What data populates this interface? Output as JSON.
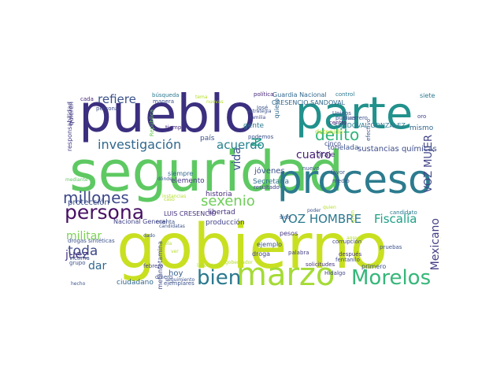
{
  "words": [
    {
      "text": "gobierno",
      "color": "#c8e020",
      "weight": 5
    },
    {
      "text": "seguridad",
      "color": "#5ec962",
      "weight": 5
    },
    {
      "text": "pueblo",
      "color": "#3b2f7f",
      "weight": 5
    },
    {
      "text": "parte",
      "color": "#21918c",
      "weight": 5
    },
    {
      "text": "proceso",
      "color": "#2c7b8e",
      "weight": 4
    },
    {
      "text": "marzo",
      "color": "#a5db36",
      "weight": 4
    },
    {
      "text": "persona",
      "color": "#471164",
      "weight": 3
    },
    {
      "text": "Morelos",
      "color": "#35b779",
      "weight": 3
    },
    {
      "text": "bien",
      "color": "#2a788e",
      "weight": 3
    },
    {
      "text": "millones",
      "color": "#3e4a89",
      "weight": 3
    },
    {
      "text": "delito",
      "color": "#2fb47c",
      "weight": 2
    },
    {
      "text": "sexenio",
      "color": "#6ece58",
      "weight": 2
    },
    {
      "text": "investigación",
      "color": "#31688e",
      "weight": 2
    },
    {
      "text": "acuerdo",
      "color": "#26828e",
      "weight": 2
    },
    {
      "text": "refiere",
      "color": "#3b528b",
      "weight": 2
    },
    {
      "text": "Fiscalía",
      "color": "#1fa187",
      "weight": 2
    },
    {
      "text": "VOZ HOMBRE",
      "color": "#2a788e",
      "weight": 2
    },
    {
      "text": "cuatro",
      "color": "#482173",
      "weight": 2
    },
    {
      "text": "toda",
      "color": "#3e4989",
      "weight": 2
    },
    {
      "text": "militar",
      "color": "#7ad151",
      "weight": 2
    },
    {
      "text": "juez",
      "color": "#453781",
      "weight": 2
    },
    {
      "text": "dar",
      "color": "#31688e",
      "weight": 2
    },
    {
      "text": "democracia",
      "color": "#31688e",
      "weight": 2
    },
    {
      "text": "vida",
      "color": "#3b528b",
      "weight": 2
    },
    {
      "text": "VOZ MUJER",
      "color": "#414487",
      "weight": 2
    },
    {
      "text": "Mexicano",
      "color": "#433e85",
      "weight": 2
    },
    {
      "text": "N",
      "color": "#1f9e89",
      "weight": 2
    },
    {
      "text": "Secretaría",
      "color": "#2d708e",
      "weight": 1
    },
    {
      "text": "jóvenes",
      "color": "#3b528b",
      "weight": 1
    },
    {
      "text": "sustancias químicas",
      "color": "#3e4c8a",
      "weight": 1
    },
    {
      "text": "historia",
      "color": "#472d7b",
      "weight": 1
    },
    {
      "text": "libertad",
      "color": "#46327e",
      "weight": 1
    },
    {
      "text": "producción",
      "color": "#414487",
      "weight": 1
    },
    {
      "text": "protección",
      "color": "#3b528b",
      "weight": 1
    },
    {
      "text": "ciudadano",
      "color": "#31688e",
      "weight": 1
    },
    {
      "text": "quieren",
      "color": "#35608d",
      "weight": 1
    },
    {
      "text": "hoy",
      "color": "#3b528b",
      "weight": 1
    },
    {
      "text": "país",
      "color": "#2a788e",
      "weight": 1
    },
    {
      "text": "gente",
      "color": "#453882",
      "weight": 1
    },
    {
      "text": "elemento",
      "color": "#46327e",
      "weight": 1
    },
    {
      "text": "LUIS CRESENCIO",
      "color": "#414487",
      "weight": 1
    },
    {
      "text": "Nacional General",
      "color": "#31688e",
      "weight": 1
    },
    {
      "text": "Guardia Nacional",
      "color": "#2a788e",
      "weight": 1
    },
    {
      "text": "control",
      "color": "#2a788e",
      "weight": 1
    },
    {
      "text": "siete",
      "color": "#31688e",
      "weight": 1
    },
    {
      "text": "mismo",
      "color": "#3b528b",
      "weight": 1
    },
    {
      "text": "tonelada",
      "color": "#46327e",
      "weight": 1
    },
    {
      "text": "tiraje",
      "color": "#3e4989",
      "weight": 1
    },
    {
      "text": "cinco",
      "color": "#b5de2b",
      "weight": 1
    },
    {
      "text": "detenido",
      "color": "#414487",
      "weight": 1
    },
    {
      "text": "resultado",
      "color": "#414487",
      "weight": 1
    },
    {
      "text": "droga",
      "color": "#453781",
      "weight": 1
    },
    {
      "text": "pesos",
      "color": "#3b528b",
      "weight": 1
    },
    {
      "text": "ejemplo",
      "color": "#433e85",
      "weight": 1
    },
    {
      "text": "palabra",
      "color": "#414487",
      "weight": 1
    },
    {
      "text": "corrupción",
      "color": "#3b528b",
      "weight": 1
    },
    {
      "text": "primero",
      "color": "#3b528b",
      "weight": 1
    },
    {
      "text": "pruebas",
      "color": "#414487",
      "weight": 1
    },
    {
      "text": "Hidalgo",
      "color": "#453781",
      "weight": 1
    },
    {
      "text": "después",
      "color": "#3e4a89",
      "weight": 1
    },
    {
      "text": "fentanilo",
      "color": "#46327e",
      "weight": 1
    },
    {
      "text": "metanfetamina",
      "color": "#3e4989",
      "weight": 1
    },
    {
      "text": "solicitudes",
      "color": "#2a788e",
      "weight": 1
    },
    {
      "text": "búsqueda",
      "color": "#3b528b",
      "weight": 1
    },
    {
      "text": "manera",
      "color": "#31688e",
      "weight": 1
    },
    {
      "text": "responsabilidad",
      "color": "#433e85",
      "weight": 1
    },
    {
      "text": "siempre",
      "color": "#482878",
      "weight": 1
    },
    {
      "text": "cada",
      "color": "#3e4a89",
      "weight": 1
    },
    {
      "text": "personal",
      "color": "#472c7a",
      "weight": 1
    },
    {
      "text": "República",
      "color": "#6ece58",
      "weight": 1
    },
    {
      "text": "tiempo",
      "color": "#3b528b",
      "weight": 1
    },
    {
      "text": "podemos",
      "color": "#31688e",
      "weight": 1
    },
    {
      "text": "quiero",
      "color": "#31688e",
      "weight": 1
    },
    {
      "text": "CRESENCIO SANDOVAL",
      "color": "#2a788e",
      "weight": 1
    },
    {
      "text": "SANDOVAL GONZÁLEZ",
      "color": "#2a788e",
      "weight": 1
    },
    {
      "text": "candidato",
      "color": "#3b528b",
      "weight": 1
    },
    {
      "text": "José",
      "color": "#482878",
      "weight": 1
    },
    {
      "text": "política",
      "color": "#3e4989",
      "weight": 1
    },
    {
      "text": "familia",
      "color": "#414487",
      "weight": 1
    },
    {
      "text": "oro",
      "color": "#482173",
      "weight": 1
    },
    {
      "text": "centro",
      "color": "#3b528b",
      "weight": 1
    },
    {
      "text": "nuevo",
      "color": "#3b528b",
      "weight": 1
    },
    {
      "text": "favor",
      "color": "#3b528b",
      "weight": 1
    },
    {
      "text": "medio",
      "color": "#3b528b",
      "weight": 1
    },
    {
      "text": "poder",
      "color": "#b5de2b",
      "weight": 1
    },
    {
      "text": "efectivo",
      "color": "#3b528b",
      "weight": 1
    },
    {
      "text": "Unidos",
      "color": "#3b528b",
      "weight": 1
    },
    {
      "text": "pública",
      "color": "#3b528b",
      "weight": 1
    },
    {
      "text": "estrategia",
      "color": "#3b528b",
      "weight": 1
    },
    {
      "text": "sido",
      "color": "#3b528b",
      "weight": 1
    },
    {
      "text": "gran",
      "color": "#b5de2b",
      "weight": 1
    },
    {
      "text": "febrero",
      "color": "#414487",
      "weight": 1
    },
    {
      "text": "dinero",
      "color": "#3b528b",
      "weight": 1
    },
    {
      "text": "víctima",
      "color": "#3b528b",
      "weight": 1
    },
    {
      "text": "grupo",
      "color": "#3b528b",
      "weight": 1
    },
    {
      "text": "drogas sintéticas",
      "color": "#3b528b",
      "weight": 1
    },
    {
      "text": "hecho",
      "color": "#3b528b",
      "weight": 1
    },
    {
      "text": "ejemplares",
      "color": "#3b528b",
      "weight": 1
    },
    {
      "text": "cuenta",
      "color": "#3b528b",
      "weight": 1
    },
    {
      "text": "candidatas",
      "color": "#3b528b",
      "weight": 1
    },
    {
      "text": "seguimiento",
      "color": "#3b528b",
      "weight": 1
    },
    {
      "text": "dado",
      "color": "#3b528b",
      "weight": 1
    },
    {
      "text": "ver",
      "color": "#b5de2b",
      "weight": 1
    },
    {
      "text": "dónde",
      "color": "#3b528b",
      "weight": 1
    },
    {
      "text": "mediante",
      "color": "#5ec962",
      "weight": 1
    },
    {
      "text": "laboratorio",
      "color": "#b5de2b",
      "weight": 1
    },
    {
      "text": "instancias",
      "color": "#b5de2b",
      "weight": 1
    },
    {
      "text": "caso",
      "color": "#b5de2b",
      "weight": 1
    },
    {
      "text": "local",
      "color": "#b5de2b",
      "weight": 1
    },
    {
      "text": "sola",
      "color": "#b5de2b",
      "weight": 1
    },
    {
      "text": "nuevas",
      "color": "#b5de2b",
      "weight": 1
    },
    {
      "text": "quien",
      "color": "#b5de2b",
      "weight": 1
    },
    {
      "text": "Guerrero",
      "color": "#3b528b",
      "weight": 1
    },
    {
      "text": "agregó",
      "color": "#b5de2b",
      "weight": 1
    },
    {
      "text": "gobernador",
      "color": "#b5de2b",
      "weight": 1
    },
    {
      "text": "tema",
      "color": "#b5de2b",
      "weight": 1
    }
  ]
}
